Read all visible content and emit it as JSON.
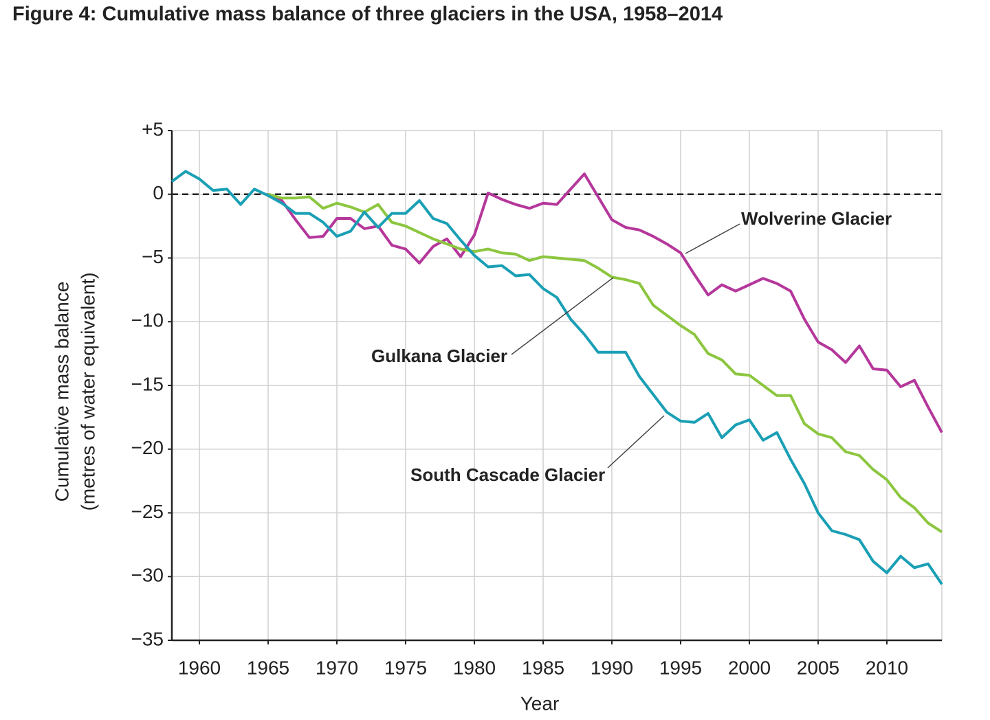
{
  "chart_data": {
    "type": "line",
    "title": "Figure 4: Cumulative mass balance of three glaciers in the USA, 1958–2014",
    "xlabel": "Year",
    "ylabel": [
      "Cumulative mass balance",
      "(metres of water equivalent)"
    ],
    "x": [
      1958,
      1959,
      1960,
      1961,
      1962,
      1963,
      1964,
      1965,
      1966,
      1967,
      1968,
      1969,
      1970,
      1971,
      1972,
      1973,
      1974,
      1975,
      1976,
      1977,
      1978,
      1979,
      1980,
      1981,
      1982,
      1983,
      1984,
      1985,
      1986,
      1987,
      1988,
      1989,
      1990,
      1991,
      1992,
      1993,
      1994,
      1995,
      1996,
      1997,
      1998,
      1999,
      2000,
      2001,
      2002,
      2003,
      2004,
      2005,
      2006,
      2007,
      2008,
      2009,
      2010,
      2011,
      2012,
      2013,
      2014
    ],
    "series": [
      {
        "name": "Wolverine Glacier",
        "color": "#b5379b",
        "values": [
          null,
          null,
          null,
          null,
          null,
          null,
          null,
          0,
          -0.5,
          -2.0,
          -3.4,
          -3.3,
          -1.9,
          -1.9,
          -2.7,
          -2.5,
          -4.0,
          -4.3,
          -5.4,
          -4.1,
          -3.5,
          -4.9,
          -3.2,
          0.1,
          -0.4,
          -0.8,
          -1.1,
          -0.7,
          -0.8,
          0.4,
          1.6,
          -0.2,
          -2.0,
          -2.6,
          -2.8,
          -3.3,
          -3.9,
          -4.6,
          -6.3,
          -7.9,
          -7.1,
          -7.6,
          -7.1,
          -6.6,
          -7.0,
          -7.6,
          -9.8,
          -11.6,
          -12.2,
          -13.2,
          -11.9,
          -13.7,
          -13.8,
          -15.1,
          -14.6,
          -16.7,
          -18.7
        ]
      },
      {
        "name": "Gulkana Glacier",
        "color": "#8cc63f",
        "values": [
          null,
          null,
          null,
          null,
          null,
          null,
          null,
          0,
          -0.3,
          -0.3,
          -0.2,
          -1.1,
          -0.7,
          -1.0,
          -1.4,
          -0.8,
          -2.2,
          -2.5,
          -3.0,
          -3.5,
          -3.9,
          -4.3,
          -4.5,
          -4.3,
          -4.6,
          -4.7,
          -5.2,
          -4.9,
          -5.0,
          -5.1,
          -5.2,
          -5.8,
          -6.5,
          -6.7,
          -7.0,
          -8.7,
          -9.5,
          -10.3,
          -11.0,
          -12.5,
          -13.0,
          -14.1,
          -14.2,
          -15.0,
          -15.8,
          -15.8,
          -18.0,
          -18.8,
          -19.1,
          -20.2,
          -20.5,
          -21.6,
          -22.4,
          -23.8,
          -24.6,
          -25.8,
          -26.5
        ]
      },
      {
        "name": "South Cascade Glacier",
        "color": "#1a9fb5",
        "values": [
          1.0,
          1.8,
          1.2,
          0.3,
          0.4,
          -0.8,
          0.4,
          -0.1,
          -0.7,
          -1.5,
          -1.5,
          -2.2,
          -3.3,
          -2.9,
          -1.4,
          -2.6,
          -1.5,
          -1.5,
          -0.5,
          -1.9,
          -2.3,
          -3.6,
          -4.8,
          -5.7,
          -5.6,
          -6.4,
          -6.3,
          -7.4,
          -8.1,
          -9.8,
          -11.0,
          -12.4,
          -12.4,
          -12.4,
          -14.3,
          -15.7,
          -17.1,
          -17.8,
          -17.9,
          -17.2,
          -19.1,
          -18.1,
          -17.7,
          -19.3,
          -18.7,
          -20.8,
          -22.7,
          -25.0,
          -26.4,
          -26.7,
          -27.1,
          -28.8,
          -29.7,
          -28.4,
          -29.3,
          -29.0,
          -30.6
        ]
      }
    ],
    "xlim": [
      1958,
      2014
    ],
    "xticks": [
      1960,
      1965,
      1970,
      1975,
      1980,
      1985,
      1990,
      1995,
      2000,
      2005,
      2010
    ],
    "ylim": [
      -35,
      5
    ],
    "yticks": [
      {
        "value": 5,
        "label": "+5"
      },
      0,
      {
        "value": -5,
        "label": "−5"
      },
      {
        "value": -10,
        "label": "−10"
      },
      {
        "value": -15,
        "label": "−15"
      },
      {
        "value": -20,
        "label": "−20"
      },
      {
        "value": -25,
        "label": "−25"
      },
      {
        "value": -30,
        "label": "−30"
      },
      {
        "value": -35,
        "label": "−35"
      }
    ],
    "grid": true,
    "reference_line": 0
  }
}
